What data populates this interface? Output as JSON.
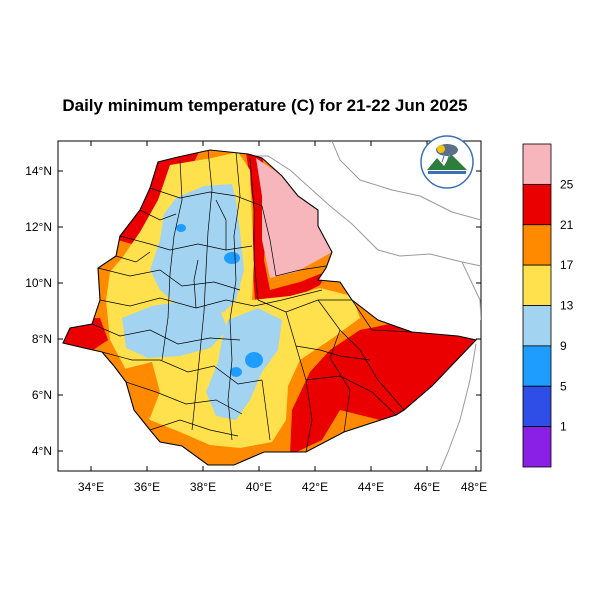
{
  "title": "Daily minimum temperature (C) for 21-22 Jun 2025",
  "lat_ticks": [
    "14°N",
    "12°N",
    "10°N",
    "8°N",
    "6°N",
    "4°N"
  ],
  "lon_ticks": [
    "34°E",
    "36°E",
    "38°E",
    "40°E",
    "42°E",
    "44°E",
    "46°E",
    "48°E"
  ],
  "extent": {
    "lon_min": 33.0,
    "lon_max": 48.1,
    "lat_min": 3.0,
    "lat_max": 15.0
  },
  "colorbar": {
    "labels": [
      "25",
      "21",
      "17",
      "13",
      "9",
      "5",
      "1"
    ],
    "colors": [
      "#f7b6bc",
      "#ea0000",
      "#ff8a00",
      "#ffe14d",
      "#a2d3f0",
      "#1f9dff",
      "#2f4ee8",
      "#8a1fe6"
    ]
  },
  "logo": {
    "name": "ethiopia-meteorology-logo"
  },
  "icons": {
    "logo": "ethiopia-meteorology-logo"
  }
}
